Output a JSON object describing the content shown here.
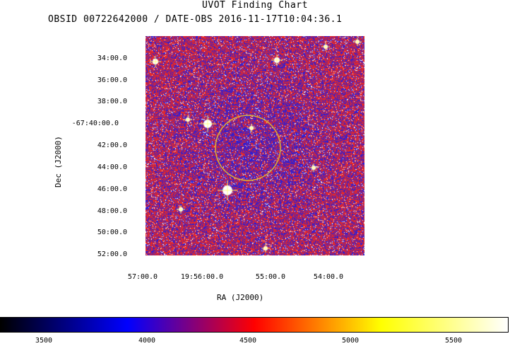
{
  "chart_data": {
    "type": "heatmap",
    "title": "UVOT Finding Chart",
    "subtitle": "OBSID 00722642000 / DATE-OBS 2016-11-17T10:04:36.1",
    "xlabel": "RA (J2000)",
    "ylabel": "Dec (J2000)",
    "x_ticks": [
      "57:00.0",
      "19:56:00.0",
      "55:00.0",
      "54:00.0"
    ],
    "y_ticks": [
      "34:00.0",
      "36:00.0",
      "38:00.0",
      "-67:40:00.0",
      "42:00.0",
      "44:00.0",
      "46:00.0",
      "48:00.0",
      "50:00.0",
      "52:00.0"
    ],
    "colorbar": {
      "ticks": [
        3500,
        4000,
        4500,
        5000,
        5500
      ],
      "colors": [
        "#000000",
        "#0000ff",
        "#ff0000",
        "#ffff00",
        "#ffffff"
      ]
    },
    "region_circle_color": "#d8b23a"
  }
}
